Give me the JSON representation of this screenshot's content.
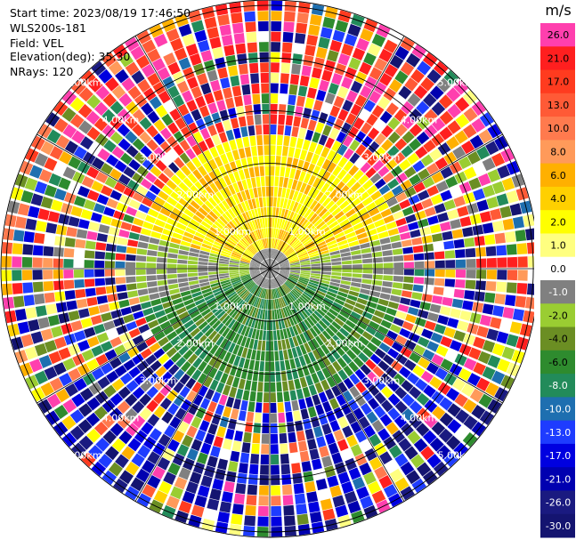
{
  "info": {
    "start_time": "Start time: 2023/08/19 17:46:50",
    "instrument": "WLS200s-181",
    "field": "Field: VEL",
    "elevation": "Elevation(deg): 35.30",
    "nrays": "NRays: 120"
  },
  "chart_data": {
    "type": "heatmap",
    "projection": "ppi-polar",
    "field": "VEL",
    "units": "m/s",
    "nrays": 120,
    "range_rings_km": [
      1,
      2,
      3,
      4,
      5
    ],
    "range_labels": [
      "1.00km",
      "2.00km",
      "3.00km",
      "4.00km",
      "5.00km"
    ],
    "colorbar": {
      "title": "m/s",
      "tick_labels": [
        "26.0",
        "21.0",
        "17.0",
        "13.0",
        "10.0",
        "8.0",
        "6.0",
        "4.0",
        "2.0",
        "1.0",
        "0.0",
        "-1.0",
        "-2.0",
        "-4.0",
        "-6.0",
        "-8.0",
        "-10.0",
        "-13.0",
        "-17.0",
        "-21.0",
        "-26.0",
        "-30.0"
      ],
      "colors": [
        "#ff3fae",
        "#ff1f1f",
        "#ff3b1f",
        "#ff5a36",
        "#ff7a4e",
        "#ff9a5a",
        "#ffb000",
        "#ffd000",
        "#ffff00",
        "#ffff80",
        "#ffffff",
        "#808080",
        "#9acd32",
        "#6b8e23",
        "#2e8b2e",
        "#228b5a",
        "#1e6fb0",
        "#1e3cff",
        "#0000e0",
        "#0000b0",
        "#1a1a80",
        "#141470"
      ]
    },
    "pattern": {
      "near_range_km": 2.6,
      "noise_beyond_km": 2.6,
      "positive_sector": "north",
      "negative_sector": "south"
    }
  }
}
